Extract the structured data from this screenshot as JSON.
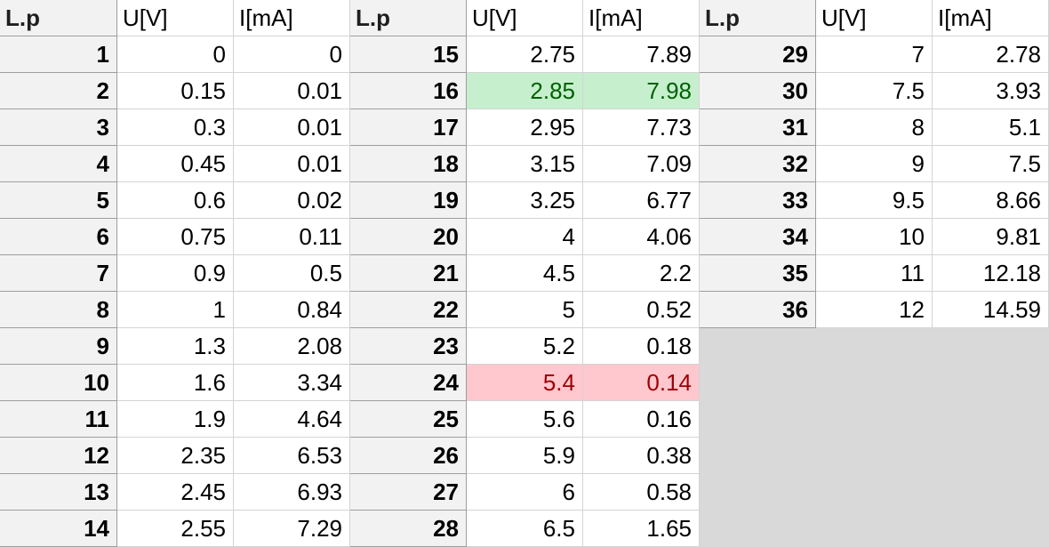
{
  "headers": {
    "lp": "L.p",
    "u": "U[V]",
    "i": "I[mA]"
  },
  "colors": {
    "highlight_green_bg": "#c6efce",
    "highlight_green_text": "#006100",
    "highlight_red_bg": "#ffc7ce",
    "highlight_red_text": "#9c0006",
    "header_bg": "#f2f2f2",
    "empty_bg": "#d9d9d9"
  },
  "blocks": [
    {
      "rows": [
        {
          "lp": "1",
          "u": "0",
          "i": "0"
        },
        {
          "lp": "2",
          "u": "0.15",
          "i": "0.01"
        },
        {
          "lp": "3",
          "u": "0.3",
          "i": "0.01"
        },
        {
          "lp": "4",
          "u": "0.45",
          "i": "0.01"
        },
        {
          "lp": "5",
          "u": "0.6",
          "i": "0.02"
        },
        {
          "lp": "6",
          "u": "0.75",
          "i": "0.11"
        },
        {
          "lp": "7",
          "u": "0.9",
          "i": "0.5"
        },
        {
          "lp": "8",
          "u": "1",
          "i": "0.84"
        },
        {
          "lp": "9",
          "u": "1.3",
          "i": "2.08"
        },
        {
          "lp": "10",
          "u": "1.6",
          "i": "3.34"
        },
        {
          "lp": "11",
          "u": "1.9",
          "i": "4.64"
        },
        {
          "lp": "12",
          "u": "2.35",
          "i": "6.53"
        },
        {
          "lp": "13",
          "u": "2.45",
          "i": "6.93"
        },
        {
          "lp": "14",
          "u": "2.55",
          "i": "7.29"
        }
      ]
    },
    {
      "rows": [
        {
          "lp": "15",
          "u": "2.75",
          "i": "7.89"
        },
        {
          "lp": "16",
          "u": "2.85",
          "i": "7.98",
          "hl": "green"
        },
        {
          "lp": "17",
          "u": "2.95",
          "i": "7.73"
        },
        {
          "lp": "18",
          "u": "3.15",
          "i": "7.09"
        },
        {
          "lp": "19",
          "u": "3.25",
          "i": "6.77"
        },
        {
          "lp": "20",
          "u": "4",
          "i": "4.06"
        },
        {
          "lp": "21",
          "u": "4.5",
          "i": "2.2"
        },
        {
          "lp": "22",
          "u": "5",
          "i": "0.52"
        },
        {
          "lp": "23",
          "u": "5.2",
          "i": "0.18"
        },
        {
          "lp": "24",
          "u": "5.4",
          "i": "0.14",
          "hl": "red"
        },
        {
          "lp": "25",
          "u": "5.6",
          "i": "0.16"
        },
        {
          "lp": "26",
          "u": "5.9",
          "i": "0.38"
        },
        {
          "lp": "27",
          "u": "6",
          "i": "0.58"
        },
        {
          "lp": "28",
          "u": "6.5",
          "i": "1.65"
        }
      ]
    },
    {
      "rows": [
        {
          "lp": "29",
          "u": "7",
          "i": "2.78"
        },
        {
          "lp": "30",
          "u": "7.5",
          "i": "3.93"
        },
        {
          "lp": "31",
          "u": "8",
          "i": "5.1"
        },
        {
          "lp": "32",
          "u": "9",
          "i": "7.5"
        },
        {
          "lp": "33",
          "u": "9.5",
          "i": "8.66"
        },
        {
          "lp": "34",
          "u": "10",
          "i": "9.81"
        },
        {
          "lp": "35",
          "u": "11",
          "i": "12.18"
        },
        {
          "lp": "36",
          "u": "12",
          "i": "14.59"
        }
      ]
    }
  ]
}
